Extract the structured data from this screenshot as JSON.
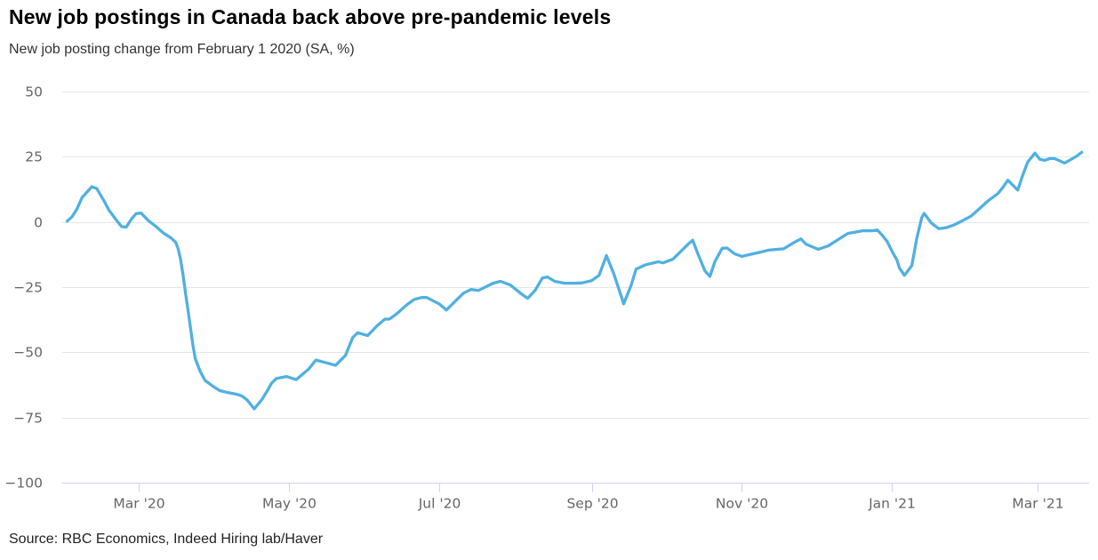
{
  "header": {
    "title": "New job postings in Canada back above pre-pandemic levels",
    "subtitle": "New job posting change from February 1 2020 (SA, %)"
  },
  "footer": {
    "source": "Source: RBC Economics, Indeed Hiring lab/Haver"
  },
  "colors": {
    "line": "#50b0e0",
    "grid": "#e6e6e6",
    "axis_line": "#ccd6eb",
    "tick_label": "#666666",
    "title": "#000000",
    "subtitle": "#333333",
    "source": "#222222",
    "background": "#ffffff"
  },
  "chart_data": {
    "type": "line",
    "title": "New job postings in Canada back above pre-pandemic levels",
    "subtitle": "New job posting change from February 1 2020 (SA, %)",
    "source": "Source: RBC Economics, Indeed Hiring lab/Haver",
    "xlabel": "",
    "ylabel": "",
    "ylim": [
      -100,
      50
    ],
    "xlim": [
      "2020-01-30",
      "2021-03-22"
    ],
    "grid": "horizontal-only",
    "legend": "none",
    "y_ticks": [
      {
        "value": 50,
        "label": "50"
      },
      {
        "value": 25,
        "label": "25"
      },
      {
        "value": 0,
        "label": "0"
      },
      {
        "value": -25,
        "label": "−25"
      },
      {
        "value": -50,
        "label": "−50"
      },
      {
        "value": -75,
        "label": "−75"
      },
      {
        "value": -100,
        "label": "−100"
      }
    ],
    "x_ticks": [
      {
        "date": "2020-03-01",
        "label": "Mar '20"
      },
      {
        "date": "2020-05-01",
        "label": "May '20"
      },
      {
        "date": "2020-07-01",
        "label": "Jul '20"
      },
      {
        "date": "2020-09-01",
        "label": "Sep '20"
      },
      {
        "date": "2020-11-01",
        "label": "Nov '20"
      },
      {
        "date": "2021-01-01",
        "label": "Jan '21"
      },
      {
        "date": "2021-03-01",
        "label": "Mar '21"
      }
    ],
    "series": [
      {
        "name": "New job posting change from February 1 2020 (SA, %)",
        "color": "#50b0e0",
        "points": [
          [
            "2020-02-01",
            0.3
          ],
          [
            "2020-02-03",
            2.0
          ],
          [
            "2020-02-05",
            5.0
          ],
          [
            "2020-02-07",
            9.3
          ],
          [
            "2020-02-11",
            13.5
          ],
          [
            "2020-02-13",
            12.8
          ],
          [
            "2020-02-16",
            8.0
          ],
          [
            "2020-02-18",
            4.5
          ],
          [
            "2020-02-21",
            0.7
          ],
          [
            "2020-02-23",
            -1.7
          ],
          [
            "2020-02-25",
            -2.0
          ],
          [
            "2020-02-27",
            1.0
          ],
          [
            "2020-02-29",
            3.2
          ],
          [
            "2020-03-02",
            3.4
          ],
          [
            "2020-03-05",
            0.5
          ],
          [
            "2020-03-08",
            -1.7
          ],
          [
            "2020-03-11",
            -4.2
          ],
          [
            "2020-03-14",
            -6.0
          ],
          [
            "2020-03-16",
            -7.7
          ],
          [
            "2020-03-17",
            -10.1
          ],
          [
            "2020-03-18",
            -14.0
          ],
          [
            "2020-03-19",
            -19.9
          ],
          [
            "2020-03-20",
            -26.9
          ],
          [
            "2020-03-22",
            -39.9
          ],
          [
            "2020-03-23",
            -46.9
          ],
          [
            "2020-03-24",
            -52.4
          ],
          [
            "2020-03-26",
            -57.3
          ],
          [
            "2020-03-28",
            -60.8
          ],
          [
            "2020-03-31",
            -62.9
          ],
          [
            "2020-04-03",
            -64.7
          ],
          [
            "2020-04-06",
            -65.4
          ],
          [
            "2020-04-10",
            -66.1
          ],
          [
            "2020-04-12",
            -66.8
          ],
          [
            "2020-04-14",
            -68.2
          ],
          [
            "2020-04-17",
            -71.7
          ],
          [
            "2020-04-20",
            -68.2
          ],
          [
            "2020-04-22",
            -65.2
          ],
          [
            "2020-04-24",
            -61.9
          ],
          [
            "2020-04-26",
            -60.0
          ],
          [
            "2020-04-30",
            -59.3
          ],
          [
            "2020-05-04",
            -60.5
          ],
          [
            "2020-05-09",
            -56.5
          ],
          [
            "2020-05-12",
            -53.0
          ],
          [
            "2020-05-15",
            -53.7
          ],
          [
            "2020-05-20",
            -55.0
          ],
          [
            "2020-05-24",
            -51.2
          ],
          [
            "2020-05-27",
            -44.3
          ],
          [
            "2020-05-29",
            -42.5
          ],
          [
            "2020-06-02",
            -43.6
          ],
          [
            "2020-06-06",
            -39.7
          ],
          [
            "2020-06-09",
            -37.3
          ],
          [
            "2020-06-11",
            -37.2
          ],
          [
            "2020-06-14",
            -35.1
          ],
          [
            "2020-06-18",
            -31.7
          ],
          [
            "2020-06-21",
            -29.7
          ],
          [
            "2020-06-24",
            -29.0
          ],
          [
            "2020-06-26",
            -29.0
          ],
          [
            "2020-07-01",
            -31.4
          ],
          [
            "2020-07-04",
            -33.8
          ],
          [
            "2020-07-08",
            -30.0
          ],
          [
            "2020-07-11",
            -27.3
          ],
          [
            "2020-07-14",
            -25.9
          ],
          [
            "2020-07-17",
            -26.3
          ],
          [
            "2020-07-20",
            -24.9
          ],
          [
            "2020-07-23",
            -23.5
          ],
          [
            "2020-07-26",
            -22.8
          ],
          [
            "2020-07-30",
            -24.2
          ],
          [
            "2020-08-04",
            -28.0
          ],
          [
            "2020-08-06",
            -29.3
          ],
          [
            "2020-08-09",
            -26.3
          ],
          [
            "2020-08-12",
            -21.5
          ],
          [
            "2020-08-14",
            -21.1
          ],
          [
            "2020-08-17",
            -22.8
          ],
          [
            "2020-08-21",
            -23.5
          ],
          [
            "2020-08-25",
            -23.5
          ],
          [
            "2020-08-28",
            -23.4
          ],
          [
            "2020-09-01",
            -22.5
          ],
          [
            "2020-09-04",
            -20.5
          ],
          [
            "2020-09-07",
            -12.9
          ],
          [
            "2020-09-10",
            -19.9
          ],
          [
            "2020-09-14",
            -31.4
          ],
          [
            "2020-09-17",
            -24.4
          ],
          [
            "2020-09-19",
            -18.1
          ],
          [
            "2020-09-23",
            -16.4
          ],
          [
            "2020-09-28",
            -15.3
          ],
          [
            "2020-09-30",
            -15.7
          ],
          [
            "2020-10-04",
            -14.3
          ],
          [
            "2020-10-10",
            -8.7
          ],
          [
            "2020-10-12",
            -7.0
          ],
          [
            "2020-10-14",
            -11.9
          ],
          [
            "2020-10-17",
            -18.8
          ],
          [
            "2020-10-19",
            -20.9
          ],
          [
            "2020-10-21",
            -15.3
          ],
          [
            "2020-10-24",
            -10.1
          ],
          [
            "2020-10-26",
            -10.0
          ],
          [
            "2020-10-29",
            -12.2
          ],
          [
            "2020-11-01",
            -13.2
          ],
          [
            "2020-11-07",
            -11.9
          ],
          [
            "2020-11-12",
            -10.8
          ],
          [
            "2020-11-18",
            -10.3
          ],
          [
            "2020-11-22",
            -8.0
          ],
          [
            "2020-11-25",
            -6.5
          ],
          [
            "2020-11-27",
            -8.5
          ],
          [
            "2020-12-02",
            -10.5
          ],
          [
            "2020-12-06",
            -9.2
          ],
          [
            "2020-12-10",
            -6.8
          ],
          [
            "2020-12-14",
            -4.4
          ],
          [
            "2020-12-20",
            -3.4
          ],
          [
            "2020-12-24",
            -3.4
          ],
          [
            "2020-12-26",
            -3.1
          ],
          [
            "2020-12-28",
            -5.1
          ],
          [
            "2020-12-30",
            -7.5
          ],
          [
            "2021-01-01",
            -11.3
          ],
          [
            "2021-01-03",
            -14.7
          ],
          [
            "2021-01-04",
            -17.7
          ],
          [
            "2021-01-06",
            -20.5
          ],
          [
            "2021-01-09",
            -16.7
          ],
          [
            "2021-01-11",
            -6.4
          ],
          [
            "2021-01-13",
            1.6
          ],
          [
            "2021-01-14",
            3.3
          ],
          [
            "2021-01-17",
            -0.5
          ],
          [
            "2021-01-20",
            -2.6
          ],
          [
            "2021-01-23",
            -2.2
          ],
          [
            "2021-01-26",
            -1.2
          ],
          [
            "2021-01-29",
            0.2
          ],
          [
            "2021-02-02",
            2.2
          ],
          [
            "2021-02-05",
            4.7
          ],
          [
            "2021-02-09",
            8.1
          ],
          [
            "2021-02-13",
            10.9
          ],
          [
            "2021-02-15",
            13.3
          ],
          [
            "2021-02-17",
            16.0
          ],
          [
            "2021-02-21",
            12.2
          ],
          [
            "2021-02-23",
            17.8
          ],
          [
            "2021-02-25",
            22.9
          ],
          [
            "2021-02-28",
            26.4
          ],
          [
            "2021-03-02",
            24.0
          ],
          [
            "2021-03-04",
            23.6
          ],
          [
            "2021-03-06",
            24.3
          ],
          [
            "2021-03-08",
            24.3
          ],
          [
            "2021-03-12",
            22.6
          ],
          [
            "2021-03-14",
            23.6
          ],
          [
            "2021-03-17",
            25.3
          ],
          [
            "2021-03-19",
            26.7
          ]
        ]
      }
    ]
  }
}
